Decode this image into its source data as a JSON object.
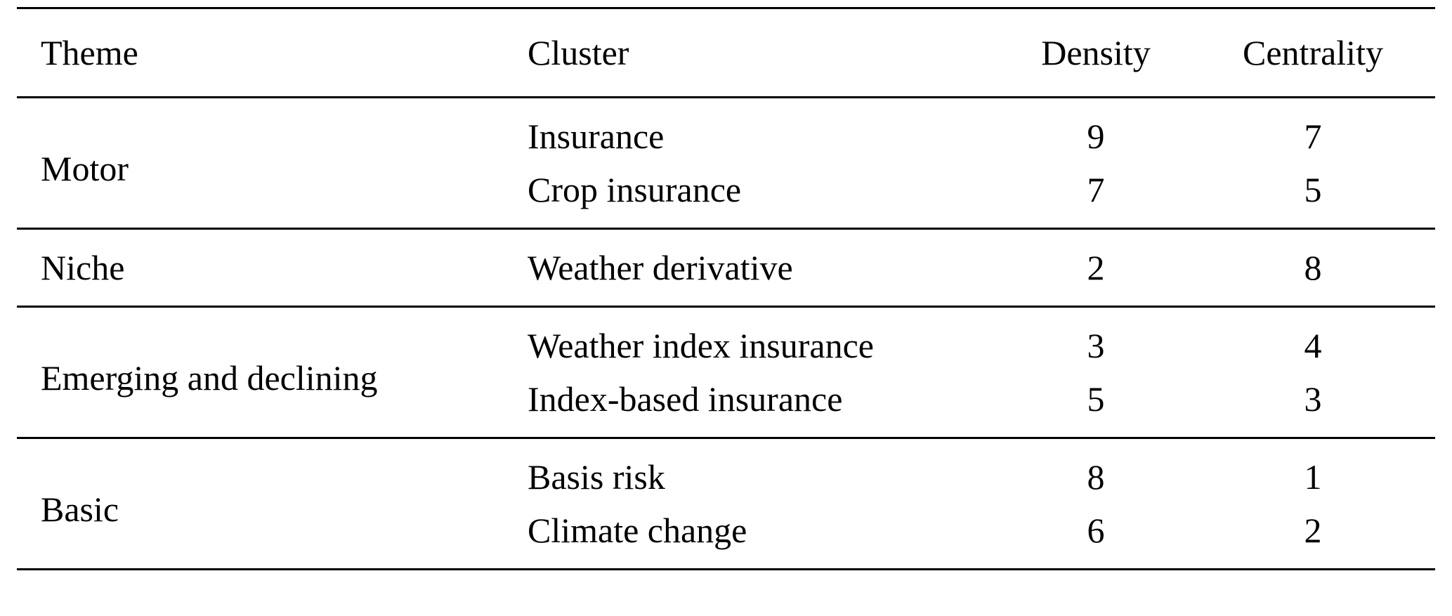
{
  "table": {
    "headers": [
      "Theme",
      "Cluster",
      "Density",
      "Centrality"
    ],
    "groups": [
      {
        "theme": "Motor",
        "rows": [
          {
            "cluster": "Insurance",
            "density": "9",
            "centrality": "7"
          },
          {
            "cluster": "Crop insurance",
            "density": "7",
            "centrality": "5"
          }
        ]
      },
      {
        "theme": "Niche",
        "rows": [
          {
            "cluster": "Weather derivative",
            "density": "2",
            "centrality": "8"
          }
        ]
      },
      {
        "theme": "Emerging and declining",
        "rows": [
          {
            "cluster": "Weather index insurance",
            "density": "3",
            "centrality": "4"
          },
          {
            "cluster": "Index-based insurance",
            "density": "5",
            "centrality": "3"
          }
        ]
      },
      {
        "theme": "Basic",
        "rows": [
          {
            "cluster": "Basis risk",
            "density": "8",
            "centrality": "1"
          },
          {
            "cluster": "Climate change",
            "density": "6",
            "centrality": "2"
          }
        ]
      }
    ]
  }
}
